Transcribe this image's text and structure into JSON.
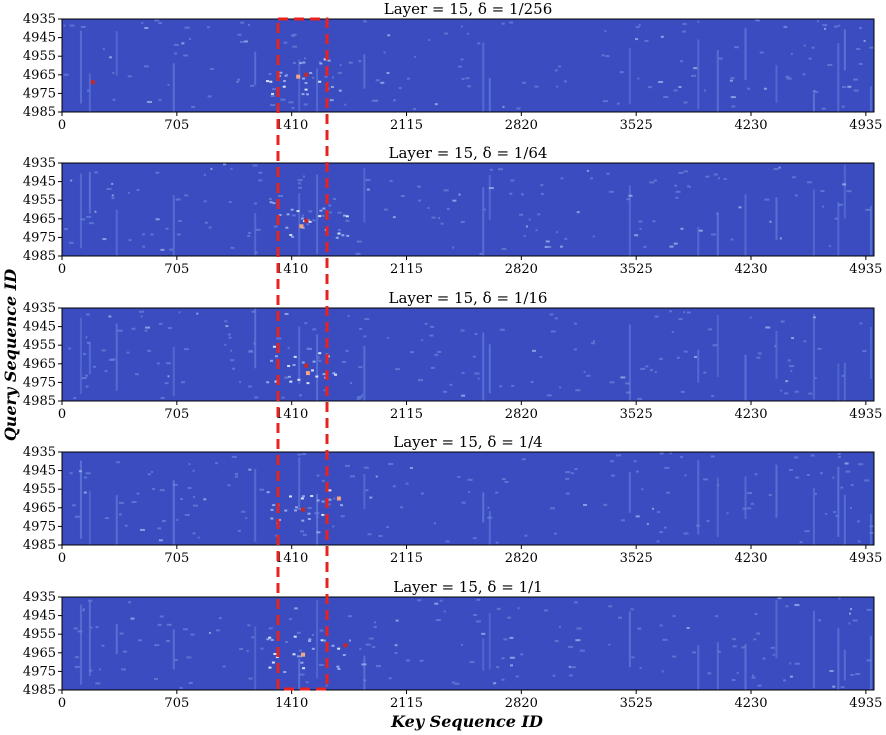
{
  "figure": {
    "ylabel": "Query Sequence ID",
    "xlabel": "Key Sequence ID",
    "colors": {
      "background": "#3b4cc0",
      "highlight_box": "#e8231f",
      "hot": "#c62828",
      "warm": "#f4a582"
    }
  },
  "chart_data": [
    {
      "type": "heatmap",
      "title": "Layer = 15,   δ = 1/256",
      "x_ticks": [
        "0",
        "705",
        "1410",
        "2115",
        "2820",
        "3525",
        "4230",
        "4935"
      ],
      "y_ticks": [
        "4935",
        "4945",
        "4955",
        "4965",
        "4975",
        "4985"
      ],
      "xlim": [
        0,
        4985
      ],
      "ylim": [
        4935,
        4985
      ],
      "colormap": "coolwarm",
      "hotspots": [
        {
          "x": 1500,
          "y": 4965,
          "level": "hot"
        },
        {
          "x": 190,
          "y": 4969,
          "level": "hot"
        },
        {
          "x": 1450,
          "y": 4966,
          "level": "warm"
        }
      ]
    },
    {
      "type": "heatmap",
      "title": "Layer = 15,   δ = 1/64",
      "x_ticks": [
        "0",
        "705",
        "1410",
        "2115",
        "2820",
        "3525",
        "4230",
        "4935"
      ],
      "y_ticks": [
        "4935",
        "4945",
        "4955",
        "4965",
        "4975",
        "4985"
      ],
      "xlim": [
        0,
        4985
      ],
      "ylim": [
        4935,
        4985
      ],
      "colormap": "coolwarm",
      "hotspots": [
        {
          "x": 1500,
          "y": 4966,
          "level": "hot"
        },
        {
          "x": 1470,
          "y": 4969,
          "level": "warm"
        }
      ]
    },
    {
      "type": "heatmap",
      "title": "Layer = 15,   δ = 1/16",
      "x_ticks": [
        "0",
        "705",
        "1410",
        "2115",
        "2820",
        "3525",
        "4230",
        "4935"
      ],
      "y_ticks": [
        "4935",
        "4945",
        "4955",
        "4965",
        "4975",
        "4985"
      ],
      "xlim": [
        0,
        4985
      ],
      "ylim": [
        4935,
        4985
      ],
      "colormap": "coolwarm",
      "hotspots": [
        {
          "x": 1500,
          "y": 4966,
          "level": "hot"
        },
        {
          "x": 1510,
          "y": 4970,
          "level": "warm"
        }
      ]
    },
    {
      "type": "heatmap",
      "title": "Layer = 15,   δ = 1/4",
      "x_ticks": [
        "0",
        "705",
        "1410",
        "2115",
        "2820",
        "3525",
        "4230",
        "4935"
      ],
      "y_ticks": [
        "4935",
        "4945",
        "4955",
        "4965",
        "4975",
        "4985"
      ],
      "xlim": [
        0,
        4985
      ],
      "ylim": [
        4935,
        4985
      ],
      "colormap": "coolwarm",
      "hotspots": [
        {
          "x": 1480,
          "y": 4966,
          "level": "hot"
        },
        {
          "x": 1700,
          "y": 4960,
          "level": "warm"
        }
      ]
    },
    {
      "type": "heatmap",
      "title": "Layer = 15,   δ = 1/1",
      "x_ticks": [
        "0",
        "705",
        "1410",
        "2115",
        "2820",
        "3525",
        "4230",
        "4935"
      ],
      "y_ticks": [
        "4935",
        "4945",
        "4955",
        "4965",
        "4975",
        "4985"
      ],
      "xlim": [
        0,
        4985
      ],
      "ylim": [
        4935,
        4985
      ],
      "colormap": "coolwarm",
      "hotspots": [
        {
          "x": 1740,
          "y": 4961,
          "level": "hot"
        },
        {
          "x": 1480,
          "y": 4966,
          "level": "warm"
        }
      ]
    }
  ]
}
